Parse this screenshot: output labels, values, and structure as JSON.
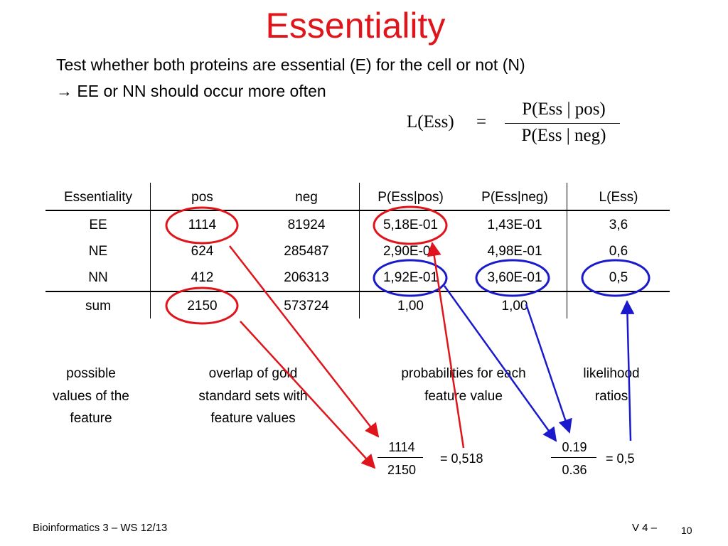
{
  "title": "Essentiality",
  "intro": [
    "Test whether both proteins are essential (E) for the cell or not (N)",
    "→ EE or NN should occur more often"
  ],
  "formula": {
    "lhs": "L(Ess)",
    "eq": "=",
    "numerator": "P(Ess | pos)",
    "denominator": "P(Ess | neg)"
  },
  "table": {
    "headers": [
      "Essentiality",
      "pos",
      "neg",
      "P(Ess|pos)",
      "P(Ess|neg)",
      "L(Ess)"
    ],
    "rows": [
      [
        "EE",
        "1114",
        "81924",
        "5,18E-01",
        "1,43E-01",
        "3,6"
      ],
      [
        "NE",
        "624",
        "285487",
        "2,90E-01",
        "4,98E-01",
        "0,6"
      ],
      [
        "NN",
        "412",
        "206313",
        "1,92E-01",
        "3,60E-01",
        "0,5"
      ],
      [
        "sum",
        "2150",
        "573724",
        "1,00",
        "1,00",
        ""
      ]
    ]
  },
  "explanations": [
    "possible\nvalues of the\nfeature",
    "overlap of gold\nstandard sets with\nfeature values",
    "probabilities for each\nfeature value",
    "likelihood\nratios"
  ],
  "fraction_1": {
    "numerator": "1114",
    "denominator": "2150",
    "result": "= 0,518"
  },
  "fraction_2": {
    "numerator": "0.19",
    "denominator": "0.36",
    "result": "= 0,5"
  },
  "footer": {
    "left": "Bioinformatics 3 – WS 12/13",
    "right": "V 4 –",
    "page": "10"
  },
  "colors": {
    "title": "#e0151b",
    "red_annotation": "#e0151b",
    "blue_annotation": "#1a1acc"
  }
}
